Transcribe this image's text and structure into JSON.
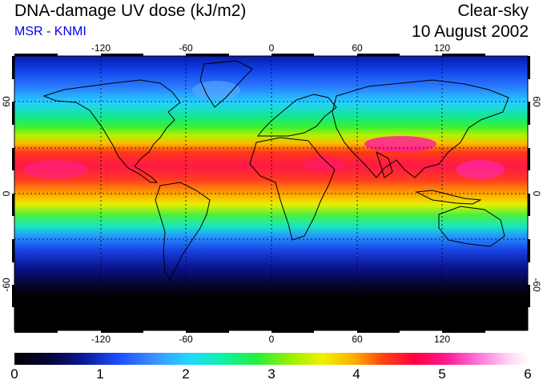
{
  "header": {
    "title": "DNA-damage UV dose (kJ/m2)",
    "source": "MSR - KNMI",
    "sky": "Clear-sky",
    "date": "10 August 2002",
    "source_color": "#0000ee"
  },
  "map": {
    "projection": "equirectangular",
    "lon_range": [
      -180,
      180
    ],
    "lat_range": [
      -90,
      90
    ],
    "grid_spacing_deg": 30,
    "lon_ticks": [
      "-120",
      "-60",
      "0",
      "60",
      "120"
    ],
    "lat_ticks_left": [
      "60",
      "0",
      "-60"
    ],
    "lat_ticks_right": [
      "60",
      "0",
      "-60"
    ],
    "coastlines": "black outline",
    "fill": "UV dose field"
  },
  "colorbar": {
    "ticks": [
      "0",
      "1",
      "2",
      "3",
      "4",
      "5",
      "6"
    ],
    "min": 0,
    "max": 6,
    "palette_stops": [
      "#000000",
      "#0a1590",
      "#1a4bff",
      "#22d8ff",
      "#20f040",
      "#f0f000",
      "#ff4010",
      "#ff1890",
      "#ffffff"
    ]
  }
}
